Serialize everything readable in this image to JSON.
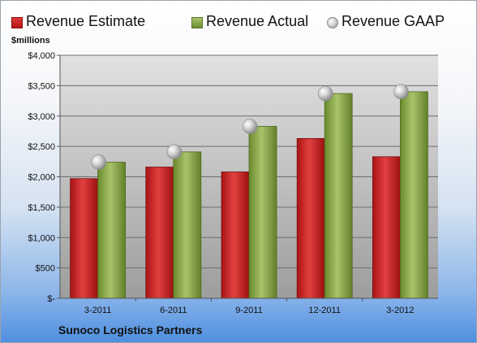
{
  "chart_data": {
    "type": "bar",
    "categories": [
      "3-2011",
      "6-2011",
      "9-2011",
      "12-2011",
      "3-2012"
    ],
    "series": [
      {
        "name": "Revenue Estimate",
        "kind": "bar",
        "color": "#c91f1f",
        "values": [
          1970,
          2160,
          2080,
          2630,
          2330
        ]
      },
      {
        "name": "Revenue Actual",
        "kind": "bar",
        "color": "#8aaa48",
        "values": [
          2240,
          2410,
          2830,
          3370,
          3400
        ]
      },
      {
        "name": "Revenue GAAP",
        "kind": "marker",
        "color": "#b8b8b8",
        "values": [
          2240,
          2410,
          2830,
          3370,
          3400
        ]
      }
    ],
    "ylabel": "$millions",
    "ylim": [
      0,
      4000
    ],
    "yticks": [
      0,
      500,
      1000,
      1500,
      2000,
      2500,
      3000,
      3500,
      4000
    ],
    "ytick_labels": [
      "$-",
      "$500",
      "$1,000",
      "$1,500",
      "$2,000",
      "$2,500",
      "$3,000",
      "$3,500",
      "$4,000"
    ],
    "grid": true,
    "legend_position": "top"
  },
  "legend": {
    "estimate_label": "Revenue Estimate",
    "actual_label": "Revenue Actual",
    "gaap_label": "Revenue GAAP"
  },
  "unit_label": "$millions",
  "company_name": "Sunoco Logistics Partners"
}
